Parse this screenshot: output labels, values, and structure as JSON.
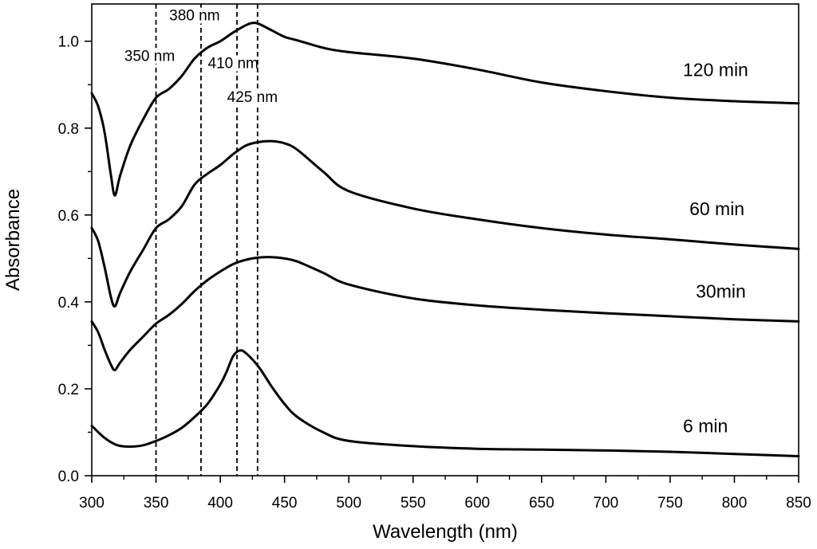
{
  "chart_data": {
    "type": "line",
    "title": "",
    "xlabel": "Wavelength (nm)",
    "ylabel": "Absorbance",
    "xlim": [
      300,
      850
    ],
    "ylim": [
      0.0,
      1.0857
    ],
    "xticks": [
      300,
      350,
      400,
      450,
      500,
      550,
      600,
      650,
      700,
      750,
      800,
      850
    ],
    "yticks": [
      0.0,
      0.2,
      0.4,
      0.6,
      0.8,
      1.0
    ],
    "ytick_labels": [
      "0.0",
      "0.2",
      "0.4",
      "0.6",
      "0.8",
      "1.0"
    ],
    "grid": false,
    "series": [
      {
        "name": "6 min",
        "label_at": [
          760,
          0.1
        ],
        "x": [
          300,
          310,
          320,
          330,
          340,
          350,
          360,
          370,
          380,
          390,
          400,
          405,
          410,
          415,
          420,
          430,
          440,
          450,
          460,
          480,
          500,
          550,
          600,
          650,
          700,
          750,
          800,
          850
        ],
        "y": [
          0.115,
          0.087,
          0.07,
          0.067,
          0.07,
          0.08,
          0.093,
          0.11,
          0.135,
          0.165,
          0.21,
          0.24,
          0.275,
          0.288,
          0.282,
          0.25,
          0.205,
          0.165,
          0.135,
          0.1,
          0.08,
          0.068,
          0.062,
          0.06,
          0.058,
          0.055,
          0.05,
          0.045
        ]
      },
      {
        "name": "30min",
        "label_at": [
          770,
          0.41
        ],
        "x": [
          300,
          305,
          310,
          315,
          318,
          322,
          330,
          340,
          350,
          360,
          370,
          380,
          390,
          400,
          410,
          420,
          430,
          440,
          450,
          460,
          480,
          500,
          550,
          600,
          650,
          700,
          750,
          800,
          850
        ],
        "y": [
          0.355,
          0.33,
          0.29,
          0.255,
          0.243,
          0.26,
          0.29,
          0.32,
          0.35,
          0.37,
          0.395,
          0.425,
          0.45,
          0.47,
          0.487,
          0.497,
          0.502,
          0.503,
          0.5,
          0.493,
          0.467,
          0.44,
          0.408,
          0.392,
          0.382,
          0.374,
          0.367,
          0.36,
          0.355
        ]
      },
      {
        "name": "60 min",
        "label_at": [
          765,
          0.6
        ],
        "x": [
          300,
          305,
          310,
          315,
          318,
          322,
          330,
          340,
          350,
          360,
          370,
          380,
          390,
          400,
          410,
          420,
          430,
          440,
          450,
          460,
          480,
          500,
          550,
          600,
          650,
          700,
          750,
          800,
          850
        ],
        "y": [
          0.57,
          0.54,
          0.48,
          0.41,
          0.39,
          0.42,
          0.47,
          0.52,
          0.57,
          0.59,
          0.62,
          0.67,
          0.695,
          0.715,
          0.74,
          0.76,
          0.768,
          0.77,
          0.765,
          0.75,
          0.7,
          0.655,
          0.615,
          0.59,
          0.57,
          0.555,
          0.544,
          0.532,
          0.522
        ]
      },
      {
        "name": "120 min",
        "label_at": [
          760,
          0.92
        ],
        "x": [
          300,
          305,
          310,
          315,
          318,
          322,
          330,
          340,
          350,
          360,
          370,
          380,
          390,
          400,
          410,
          420,
          425,
          430,
          440,
          450,
          460,
          480,
          500,
          550,
          600,
          650,
          700,
          750,
          800,
          850
        ],
        "y": [
          0.88,
          0.85,
          0.79,
          0.69,
          0.645,
          0.69,
          0.76,
          0.82,
          0.87,
          0.89,
          0.92,
          0.96,
          0.985,
          1.0,
          1.02,
          1.037,
          1.042,
          1.04,
          1.025,
          1.01,
          1.002,
          0.985,
          0.975,
          0.96,
          0.935,
          0.905,
          0.885,
          0.87,
          0.862,
          0.857
        ]
      }
    ],
    "annotations": [
      {
        "text": "350 nm",
        "vline_x": 350,
        "at": [
          345,
          0.955
        ]
      },
      {
        "text": "380 nm",
        "vline_x": 385,
        "at": [
          380,
          1.048
        ]
      },
      {
        "text": "410 nm",
        "vline_x": 413,
        "at": [
          410,
          0.938
        ]
      },
      {
        "text": "425 nm",
        "vline_x": 429,
        "at": [
          425,
          0.86
        ]
      }
    ]
  }
}
